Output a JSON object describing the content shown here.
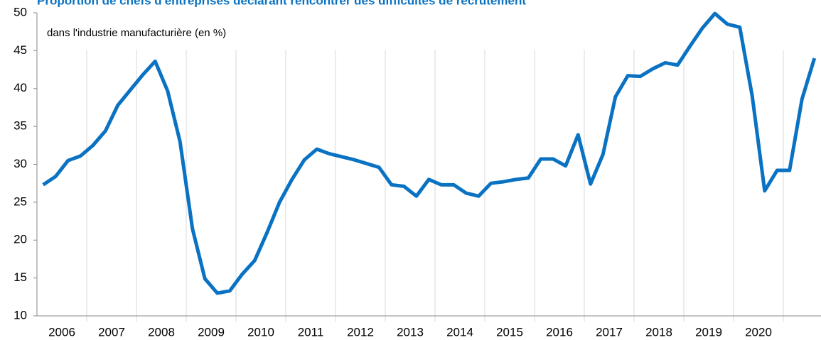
{
  "chart_data": {
    "type": "line",
    "title": "Proportion de chefs d'entreprises déclarant rencontrer des difficultés de recrutement",
    "subtitle": "dans l'industrie manufacturière (en %)",
    "categories": [
      "2006",
      null,
      null,
      null,
      "2007",
      null,
      null,
      null,
      "2008",
      null,
      null,
      null,
      "2009",
      null,
      null,
      null,
      "2010",
      null,
      null,
      null,
      "2011",
      null,
      null,
      null,
      "2012",
      null,
      null,
      null,
      "2013",
      null,
      null,
      null,
      "2014",
      null,
      null,
      null,
      "2015",
      null,
      null,
      null,
      "2016",
      null,
      null,
      null,
      "2017",
      null,
      null,
      null,
      "2018",
      null,
      null,
      null,
      "2019",
      null,
      null,
      null,
      "2020",
      null,
      null,
      null,
      null,
      null,
      null
    ],
    "series": [
      {
        "name": "Proportion",
        "color": "#0a72c2",
        "values": [
          27.3,
          28.4,
          30.5,
          31.1,
          32.5,
          34.4,
          37.8,
          39.8,
          41.8,
          43.6,
          39.7,
          33.0,
          21.5,
          14.9,
          13.0,
          13.3,
          15.5,
          17.3,
          21.0,
          25.0,
          28.0,
          30.6,
          32.0,
          31.4,
          31.0,
          30.6,
          30.1,
          29.6,
          27.3,
          27.1,
          25.8,
          28.0,
          27.3,
          27.3,
          26.2,
          25.8,
          27.5,
          27.7,
          28.0,
          28.2,
          30.7,
          30.7,
          29.8,
          33.9,
          27.4,
          31.3,
          38.9,
          41.7,
          41.6,
          42.6,
          43.4,
          43.1,
          45.6,
          48.0,
          49.9,
          48.5,
          48.1,
          39.0,
          26.5,
          29.2,
          29.2,
          38.6,
          44.0
        ]
      }
    ],
    "ylim": [
      10,
      50
    ],
    "yticks": [
      10,
      15,
      20,
      25,
      30,
      35,
      40,
      45,
      50
    ],
    "grid": false
  }
}
